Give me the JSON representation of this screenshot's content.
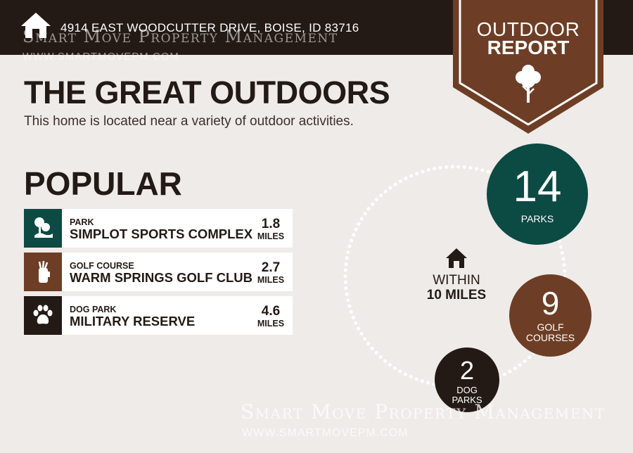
{
  "header": {
    "address": "4914 EAST WOODCUTTER DRIVE, BOISE, ID 83716",
    "home_icon": "house-icon",
    "dark_color": "#231a15"
  },
  "watermark": {
    "name": "Smart Move Property Management",
    "url": "WWW.SMARTMOVEPM.COM"
  },
  "badge": {
    "line1": "OUTDOOR",
    "line2": "REPORT",
    "icon": "tree-icon",
    "color": "#6d3e25"
  },
  "main": {
    "title": "THE GREAT OUTDOORS",
    "subtitle": "This home is located near a variety of outdoor activities."
  },
  "popular": {
    "heading": "POPULAR",
    "items": [
      {
        "category": "PARK",
        "name": "SIMPLOT SPORTS COMPLEX",
        "distance": "1.8",
        "unit": "MILES",
        "icon": "park-icon",
        "color": "#0c4a44"
      },
      {
        "category": "GOLF COURSE",
        "name": "WARM SPRINGS GOLF CLUB",
        "distance": "2.7",
        "unit": "MILES",
        "icon": "golf-bag-icon",
        "color": "#6d3e25"
      },
      {
        "category": "DOG PARK",
        "name": "MILITARY RESERVE",
        "distance": "4.6",
        "unit": "MILES",
        "icon": "paw-icon",
        "color": "#231a15"
      }
    ]
  },
  "summary": {
    "center_icon": "house-icon",
    "within_line1": "WITHIN",
    "within_line2": "10 MILES",
    "stats": [
      {
        "value": "14",
        "label_line1": "PARKS",
        "label_line2": "",
        "color": "#0c4a44"
      },
      {
        "value": "9",
        "label_line1": "GOLF",
        "label_line2": "COURSES",
        "color": "#6d3e25"
      },
      {
        "value": "2",
        "label_line1": "DOG",
        "label_line2": "PARKS",
        "color": "#231a15"
      }
    ]
  }
}
